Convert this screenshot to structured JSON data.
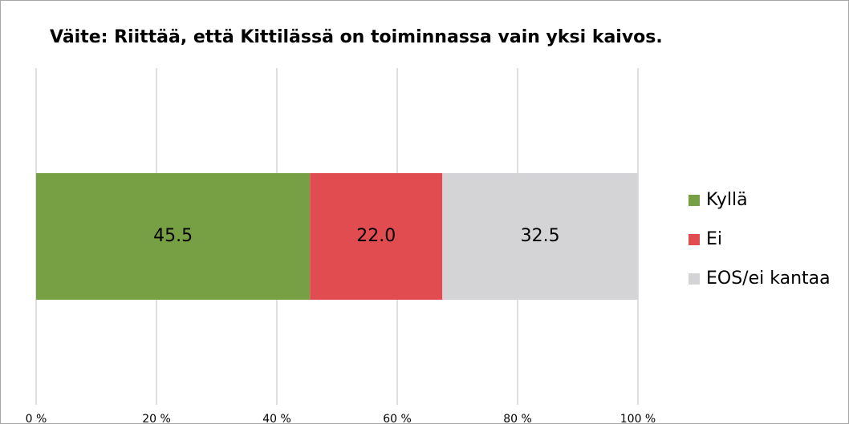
{
  "chart_data": {
    "type": "bar",
    "orientation": "horizontal",
    "stacked": true,
    "title": "Väite: Riittää, että Kittilässä on toiminnassa vain yksi kaivos.",
    "categories": [
      null
    ],
    "series": [
      {
        "name": "Kyllä",
        "color": "#77a045",
        "values": [
          45.5
        ],
        "value_labels": [
          "45.5"
        ]
      },
      {
        "name": "Ei",
        "color": "#e04c4f",
        "values": [
          22.0
        ],
        "value_labels": [
          "22.0"
        ]
      },
      {
        "name": "EOS/ei kantaa",
        "color": "#d4d3d6",
        "values": [
          32.5
        ],
        "value_labels": [
          "32.5"
        ]
      }
    ],
    "xlim": [
      0,
      100
    ],
    "xticks": [
      {
        "value": 0,
        "label": "0 %"
      },
      {
        "value": 20,
        "label": "20 %"
      },
      {
        "value": 40,
        "label": "40 %"
      },
      {
        "value": 60,
        "label": "60 %"
      },
      {
        "value": 80,
        "label": "80 %"
      },
      {
        "value": 100,
        "label": "100 %"
      }
    ],
    "grid": true,
    "legend": "right"
  }
}
